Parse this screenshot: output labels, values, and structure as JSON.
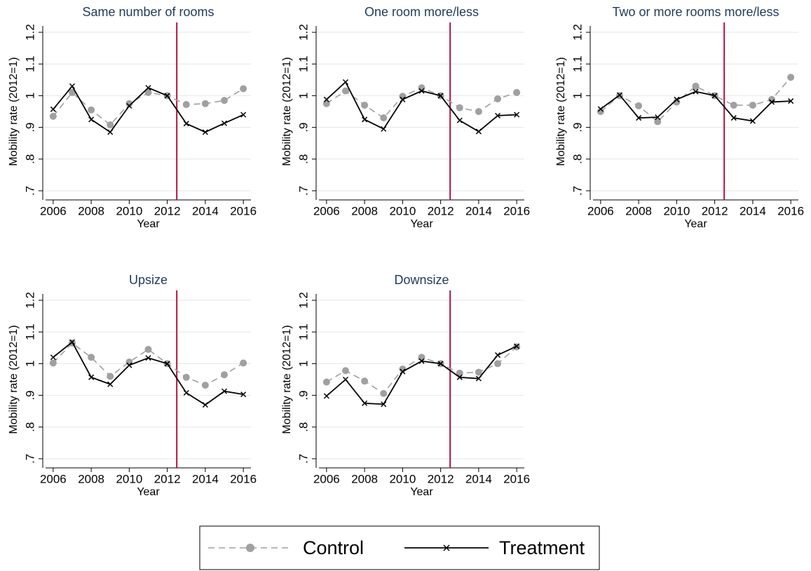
{
  "chart_data": [
    {
      "type": "line",
      "title": "Same number of rooms",
      "x_label": "Year",
      "y_label": "Mobility rate (2012=1)",
      "x": [
        2006,
        2007,
        2008,
        2009,
        2010,
        2011,
        2012,
        2013,
        2014,
        2015,
        2016
      ],
      "series": [
        {
          "name": "Control",
          "color": "#a0a0a0",
          "values": [
            0.935,
            1.01,
            0.955,
            0.908,
            0.975,
            1.01,
            1.0,
            0.972,
            0.975,
            0.985,
            1.022
          ]
        },
        {
          "name": "Treatment",
          "color": "#000000",
          "values": [
            0.957,
            1.03,
            0.925,
            0.885,
            0.968,
            1.025,
            1.0,
            0.912,
            0.885,
            0.913,
            0.94
          ]
        }
      ],
      "xlim": [
        2005.6,
        2016.4
      ],
      "xticks": [
        2006,
        2008,
        2010,
        2012,
        2014,
        2016
      ],
      "ylim": [
        0.68,
        1.22
      ],
      "yticks": [
        {
          "value": 0.7,
          "label": ".7"
        },
        {
          "value": 0.8,
          "label": ".8"
        },
        {
          "value": 0.9,
          "label": ".9"
        },
        1,
        1.1,
        1.2
      ],
      "grid": true,
      "reference_line": 2012.5,
      "reference_color": "#b0123f",
      "legend": "bottom"
    },
    {
      "type": "line",
      "title": "One room more/less",
      "x_label": "Year",
      "y_label": "Mobility rate (2012=1)",
      "x": [
        2006,
        2007,
        2008,
        2009,
        2010,
        2011,
        2012,
        2013,
        2014,
        2015,
        2016
      ],
      "series": [
        {
          "name": "Control",
          "color": "#a0a0a0",
          "values": [
            0.975,
            1.015,
            0.97,
            0.93,
            0.998,
            1.025,
            1.0,
            0.962,
            0.95,
            0.99,
            1.01
          ]
        },
        {
          "name": "Treatment",
          "color": "#000000",
          "values": [
            0.988,
            1.043,
            0.925,
            0.895,
            0.988,
            1.015,
            1.0,
            0.922,
            0.887,
            0.937,
            0.94
          ]
        }
      ],
      "xlim": [
        2005.6,
        2016.4
      ],
      "xticks": [
        2006,
        2008,
        2010,
        2012,
        2014,
        2016
      ],
      "ylim": [
        0.68,
        1.22
      ],
      "yticks": [
        {
          "value": 0.7,
          "label": ".7"
        },
        {
          "value": 0.8,
          "label": ".8"
        },
        {
          "value": 0.9,
          "label": ".9"
        },
        1,
        1.1,
        1.2
      ],
      "grid": true,
      "reference_line": 2012.5,
      "reference_color": "#b0123f"
    },
    {
      "type": "line",
      "title": "Two or more rooms more/less",
      "x_label": "Year",
      "y_label": "Mobility rate (2012=1)",
      "x": [
        2006,
        2007,
        2008,
        2009,
        2010,
        2011,
        2012,
        2013,
        2014,
        2015,
        2016
      ],
      "series": [
        {
          "name": "Control",
          "color": "#a0a0a0",
          "values": [
            0.95,
            1.0,
            0.968,
            0.918,
            0.98,
            1.03,
            1.0,
            0.97,
            0.97,
            0.988,
            1.058
          ]
        },
        {
          "name": "Treatment",
          "color": "#000000",
          "values": [
            0.958,
            1.002,
            0.93,
            0.932,
            0.988,
            1.013,
            1.0,
            0.93,
            0.92,
            0.98,
            0.983
          ]
        }
      ],
      "xlim": [
        2005.6,
        2016.4
      ],
      "xticks": [
        2006,
        2008,
        2010,
        2012,
        2014,
        2016
      ],
      "ylim": [
        0.68,
        1.22
      ],
      "yticks": [
        {
          "value": 0.7,
          "label": ".7"
        },
        {
          "value": 0.8,
          "label": ".8"
        },
        {
          "value": 0.9,
          "label": ".9"
        },
        1,
        1.1,
        1.2
      ],
      "grid": true,
      "reference_line": 2012.5,
      "reference_color": "#b0123f"
    },
    {
      "type": "line",
      "title": "Upsize",
      "x_label": "Year",
      "y_label": "Mobility rate (2012=1)",
      "x": [
        2006,
        2007,
        2008,
        2009,
        2010,
        2011,
        2012,
        2013,
        2014,
        2015,
        2016
      ],
      "series": [
        {
          "name": "Control",
          "color": "#a0a0a0",
          "values": [
            1.002,
            1.065,
            1.02,
            0.96,
            1.005,
            1.045,
            1.0,
            0.957,
            0.932,
            0.965,
            1.002
          ]
        },
        {
          "name": "Treatment",
          "color": "#000000",
          "values": [
            1.02,
            1.068,
            0.957,
            0.935,
            0.995,
            1.018,
            1.0,
            0.908,
            0.87,
            0.913,
            0.903
          ]
        }
      ],
      "xlim": [
        2005.6,
        2016.4
      ],
      "xticks": [
        2006,
        2008,
        2010,
        2012,
        2014,
        2016
      ],
      "ylim": [
        0.68,
        1.22
      ],
      "yticks": [
        {
          "value": 0.7,
          "label": ".7"
        },
        {
          "value": 0.8,
          "label": ".8"
        },
        {
          "value": 0.9,
          "label": ".9"
        },
        1,
        1.1,
        1.2
      ],
      "grid": true,
      "reference_line": 2012.5,
      "reference_color": "#b0123f"
    },
    {
      "type": "line",
      "title": "Downsize",
      "x_label": "Year",
      "y_label": "Mobility rate (2012=1)",
      "x": [
        2006,
        2007,
        2008,
        2009,
        2010,
        2011,
        2012,
        2013,
        2014,
        2015,
        2016
      ],
      "series": [
        {
          "name": "Control",
          "color": "#a0a0a0",
          "values": [
            0.942,
            0.978,
            0.945,
            0.906,
            0.983,
            1.02,
            1.0,
            0.97,
            0.973,
            1.0,
            1.053
          ]
        },
        {
          "name": "Treatment",
          "color": "#000000",
          "values": [
            0.898,
            0.95,
            0.875,
            0.872,
            0.975,
            1.008,
            1.0,
            0.957,
            0.953,
            1.027,
            1.055
          ]
        }
      ],
      "xlim": [
        2005.6,
        2016.4
      ],
      "xticks": [
        2006,
        2008,
        2010,
        2012,
        2014,
        2016
      ],
      "ylim": [
        0.68,
        1.22
      ],
      "yticks": [
        {
          "value": 0.7,
          "label": ".7"
        },
        {
          "value": 0.8,
          "label": ".8"
        },
        {
          "value": 0.9,
          "label": ".9"
        },
        1,
        1.1,
        1.2
      ],
      "grid": true,
      "reference_line": 2012.5,
      "reference_color": "#b0123f"
    }
  ]
}
